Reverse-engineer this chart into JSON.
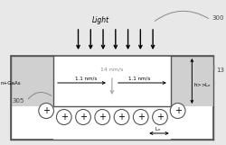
{
  "fig_width": 2.5,
  "fig_height": 1.61,
  "dpi": 100,
  "bg_color": "#e8e8e8",
  "box_color": "#ffffff",
  "pedestal_color": "#d0d0d0",
  "line_color": "#555555",
  "arrow_color": "#333333",
  "gray_arrow_color": "#999999",
  "light_label": "Light",
  "label_300": "300",
  "label_13": "13",
  "label_305": "305",
  "label_nGaAs": "n+GaAs",
  "label_14nms": "14 nm/s",
  "label_1p1_left": "1.1 nm/s",
  "label_1p1_right": "1.1 nm/s",
  "label_hLn": "h>>L$_n$",
  "label_Ln": "L$_n$"
}
